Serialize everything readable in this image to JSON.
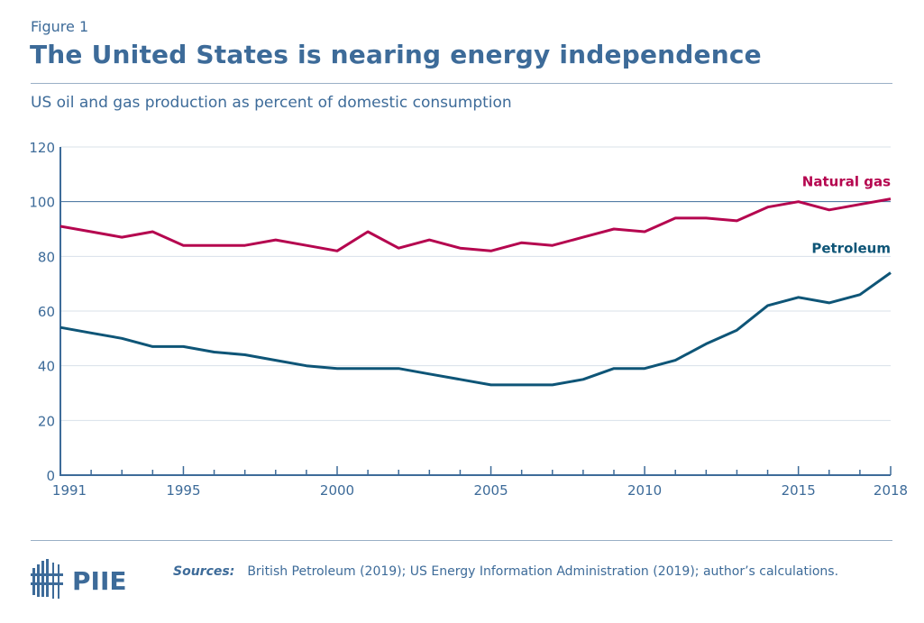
{
  "header": {
    "figure_label": "Figure 1",
    "title": "The United States is nearing energy independence",
    "subtitle": "US oil and gas production as percent of domestic consumption"
  },
  "chart_data": {
    "type": "line",
    "x": [
      1991,
      1992,
      1993,
      1994,
      1995,
      1996,
      1997,
      1998,
      1999,
      2000,
      2001,
      2002,
      2003,
      2004,
      2005,
      2006,
      2007,
      2008,
      2009,
      2010,
      2011,
      2012,
      2013,
      2014,
      2015,
      2016,
      2017,
      2018
    ],
    "series": [
      {
        "name": "Natural gas",
        "color": "#b5064f",
        "values": [
          91,
          89,
          87,
          89,
          84,
          84,
          84,
          86,
          84,
          82,
          89,
          83,
          86,
          83,
          82,
          85,
          84,
          87,
          90,
          89,
          94,
          94,
          93,
          98,
          100,
          97,
          99,
          101
        ]
      },
      {
        "name": "Petroleum",
        "color": "#0e5577",
        "values": [
          54,
          52,
          50,
          47,
          47,
          45,
          44,
          42,
          40,
          39,
          39,
          39,
          37,
          35,
          33,
          33,
          33,
          35,
          39,
          39,
          42,
          48,
          53,
          62,
          65,
          63,
          66,
          74
        ]
      }
    ],
    "ylim": [
      0,
      120
    ],
    "yticks": [
      0,
      20,
      40,
      60,
      80,
      100,
      120
    ],
    "xtick_labels": [
      1991,
      1995,
      2000,
      2005,
      2010,
      2015,
      2018
    ],
    "reference_line": 100,
    "grid": true,
    "axis_color": "#3d6b99"
  },
  "footer": {
    "sources_label": "Sources:",
    "sources_text": "British Petroleum (2019); US Energy Information Administration (2019); author’s calculations.",
    "logo_text": "PIIE"
  }
}
